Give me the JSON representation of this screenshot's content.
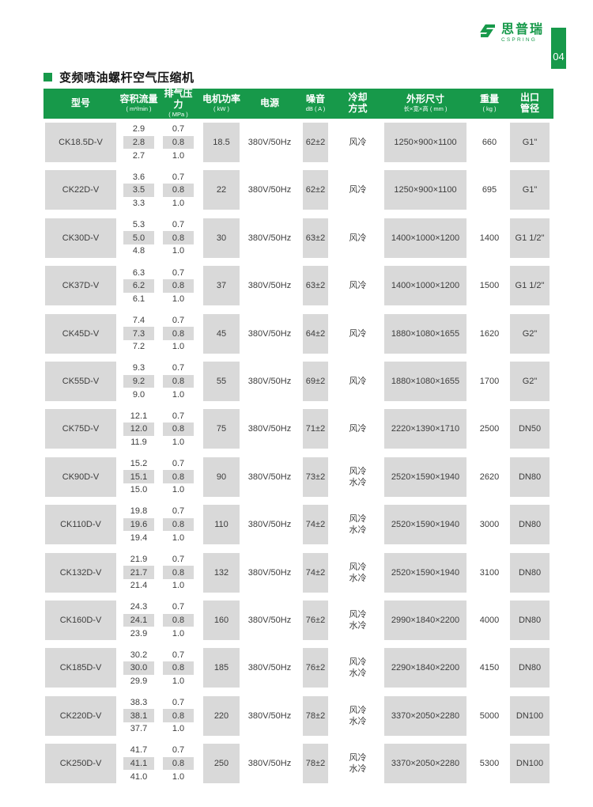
{
  "page": {
    "number": "04"
  },
  "brand": {
    "name": "思普瑞",
    "subname": "CSPRING"
  },
  "title": {
    "text": "变频喷油螺杆空气压缩机"
  },
  "colors": {
    "green": "#17994a",
    "cell_gray": "#d9d9d9",
    "text": "#3d3d3d"
  },
  "table": {
    "headers": [
      {
        "key": "model",
        "line1": "型号",
        "line2": "",
        "small": true
      },
      {
        "key": "flow",
        "line1": "容积流量",
        "line2": "( m³/min )",
        "small": true
      },
      {
        "key": "pressure",
        "line1": "排气压力",
        "line2": "( MPa )",
        "small": true
      },
      {
        "key": "power",
        "line1": "电机功率",
        "line2": "( kW )",
        "small": true
      },
      {
        "key": "supply",
        "line1": "电源",
        "line2": "",
        "small": true
      },
      {
        "key": "noise",
        "line1": "噪音",
        "line2": "dB ( A )",
        "small": true
      },
      {
        "key": "cooling",
        "line1": "冷却",
        "line2": "方式",
        "small": false
      },
      {
        "key": "dims",
        "line1": "外形尺寸",
        "line2": "长×宽×高 ( mm )",
        "small": true
      },
      {
        "key": "weight",
        "line1": "重量",
        "line2": "( kg )",
        "small": true
      },
      {
        "key": "outlet",
        "line1": "出口",
        "line2": "管径",
        "small": false
      }
    ],
    "rows": [
      {
        "model": "CK18.5D-V",
        "flow": [
          "2.9",
          "2.8",
          "2.7"
        ],
        "pressure": [
          "0.7",
          "0.8",
          "1.0"
        ],
        "power": "18.5",
        "supply": "380V/50Hz",
        "noise": "62±2",
        "cooling": [
          "风冷"
        ],
        "dims": "1250×900×1100",
        "weight": "660",
        "outlet": "G1\""
      },
      {
        "model": "CK22D-V",
        "flow": [
          "3.6",
          "3.5",
          "3.3"
        ],
        "pressure": [
          "0.7",
          "0.8",
          "1.0"
        ],
        "power": "22",
        "supply": "380V/50Hz",
        "noise": "62±2",
        "cooling": [
          "风冷"
        ],
        "dims": "1250×900×1100",
        "weight": "695",
        "outlet": "G1\""
      },
      {
        "model": "CK30D-V",
        "flow": [
          "5.3",
          "5.0",
          "4.8"
        ],
        "pressure": [
          "0.7",
          "0.8",
          "1.0"
        ],
        "power": "30",
        "supply": "380V/50Hz",
        "noise": "63±2",
        "cooling": [
          "风冷"
        ],
        "dims": "1400×1000×1200",
        "weight": "1400",
        "outlet": "G1 1/2\""
      },
      {
        "model": "CK37D-V",
        "flow": [
          "6.3",
          "6.2",
          "6.1"
        ],
        "pressure": [
          "0.7",
          "0.8",
          "1.0"
        ],
        "power": "37",
        "supply": "380V/50Hz",
        "noise": "63±2",
        "cooling": [
          "风冷"
        ],
        "dims": "1400×1000×1200",
        "weight": "1500",
        "outlet": "G1 1/2\""
      },
      {
        "model": "CK45D-V",
        "flow": [
          "7.4",
          "7.3",
          "7.2"
        ],
        "pressure": [
          "0.7",
          "0.8",
          "1.0"
        ],
        "power": "45",
        "supply": "380V/50Hz",
        "noise": "64±2",
        "cooling": [
          "风冷"
        ],
        "dims": "1880×1080×1655",
        "weight": "1620",
        "outlet": "G2\""
      },
      {
        "model": "CK55D-V",
        "flow": [
          "9.3",
          "9.2",
          "9.0"
        ],
        "pressure": [
          "0.7",
          "0.8",
          "1.0"
        ],
        "power": "55",
        "supply": "380V/50Hz",
        "noise": "69±2",
        "cooling": [
          "风冷"
        ],
        "dims": "1880×1080×1655",
        "weight": "1700",
        "outlet": "G2\""
      },
      {
        "model": "CK75D-V",
        "flow": [
          "12.1",
          "12.0",
          "11.9"
        ],
        "pressure": [
          "0.7",
          "0.8",
          "1.0"
        ],
        "power": "75",
        "supply": "380V/50Hz",
        "noise": "71±2",
        "cooling": [
          "风冷"
        ],
        "dims": "2220×1390×1710",
        "weight": "2500",
        "outlet": "DN50"
      },
      {
        "model": "CK90D-V",
        "flow": [
          "15.2",
          "15.1",
          "15.0"
        ],
        "pressure": [
          "0.7",
          "0.8",
          "1.0"
        ],
        "power": "90",
        "supply": "380V/50Hz",
        "noise": "73±2",
        "cooling": [
          "风冷",
          "水冷"
        ],
        "dims": "2520×1590×1940",
        "weight": "2620",
        "outlet": "DN80"
      },
      {
        "model": "CK110D-V",
        "flow": [
          "19.8",
          "19.6",
          "19.4"
        ],
        "pressure": [
          "0.7",
          "0.8",
          "1.0"
        ],
        "power": "110",
        "supply": "380V/50Hz",
        "noise": "74±2",
        "cooling": [
          "风冷",
          "水冷"
        ],
        "dims": "2520×1590×1940",
        "weight": "3000",
        "outlet": "DN80"
      },
      {
        "model": "CK132D-V",
        "flow": [
          "21.9",
          "21.7",
          "21.4"
        ],
        "pressure": [
          "0.7",
          "0.8",
          "1.0"
        ],
        "power": "132",
        "supply": "380V/50Hz",
        "noise": "74±2",
        "cooling": [
          "风冷",
          "水冷"
        ],
        "dims": "2520×1590×1940",
        "weight": "3100",
        "outlet": "DN80"
      },
      {
        "model": "CK160D-V",
        "flow": [
          "24.3",
          "24.1",
          "23.9"
        ],
        "pressure": [
          "0.7",
          "0.8",
          "1.0"
        ],
        "power": "160",
        "supply": "380V/50Hz",
        "noise": "76±2",
        "cooling": [
          "风冷",
          "水冷"
        ],
        "dims": "2990×1840×2200",
        "weight": "4000",
        "outlet": "DN80"
      },
      {
        "model": "CK185D-V",
        "flow": [
          "30.2",
          "30.0",
          "29.9"
        ],
        "pressure": [
          "0.7",
          "0.8",
          "1.0"
        ],
        "power": "185",
        "supply": "380V/50Hz",
        "noise": "76±2",
        "cooling": [
          "风冷",
          "水冷"
        ],
        "dims": "2290×1840×2200",
        "weight": "4150",
        "outlet": "DN80"
      },
      {
        "model": "CK220D-V",
        "flow": [
          "38.3",
          "38.1",
          "37.7"
        ],
        "pressure": [
          "0.7",
          "0.8",
          "1.0"
        ],
        "power": "220",
        "supply": "380V/50Hz",
        "noise": "78±2",
        "cooling": [
          "风冷",
          "水冷"
        ],
        "dims": "3370×2050×2280",
        "weight": "5000",
        "outlet": "DN100"
      },
      {
        "model": "CK250D-V",
        "flow": [
          "41.7",
          "41.1",
          "41.0"
        ],
        "pressure": [
          "0.7",
          "0.8",
          "1.0"
        ],
        "power": "250",
        "supply": "380V/50Hz",
        "noise": "78±2",
        "cooling": [
          "风冷",
          "水冷"
        ],
        "dims": "3370×2050×2280",
        "weight": "5300",
        "outlet": "DN100"
      }
    ]
  }
}
